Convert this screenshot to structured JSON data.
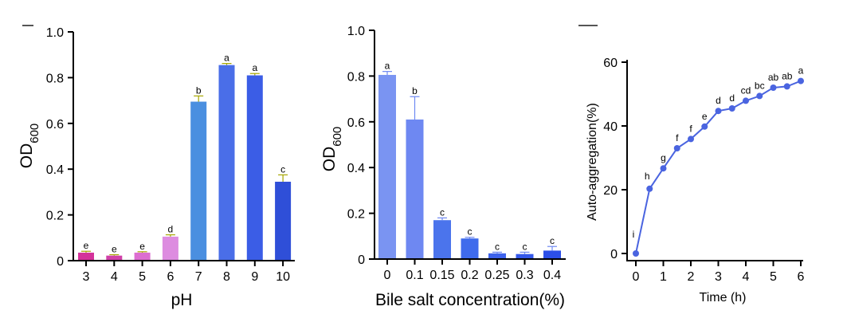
{
  "chart_data": [
    {
      "type": "bar",
      "ylabel_main": "OD",
      "ylabel_sub": "600",
      "xlabel": "pH",
      "ylim": [
        0,
        1.0
      ],
      "yticks": [
        "0",
        "0.2",
        "0.4",
        "0.6",
        "0.8",
        "1.0"
      ],
      "categories": [
        "3",
        "4",
        "5",
        "6",
        "7",
        "8",
        "9",
        "10"
      ],
      "values": [
        0.035,
        0.022,
        0.035,
        0.105,
        0.695,
        0.855,
        0.81,
        0.345
      ],
      "errors": [
        0.006,
        0.004,
        0.004,
        0.008,
        0.025,
        0.007,
        0.008,
        0.03
      ],
      "letters": [
        "e",
        "e",
        "e",
        "d",
        "b",
        "a",
        "a",
        "c"
      ],
      "colors": [
        "#d4329a",
        "#d040a8",
        "#dc6ed0",
        "#dd8ce0",
        "#4a8fe0",
        "#4a6ee8",
        "#3b5de6",
        "#2f4fd8"
      ],
      "error_color": "#a6a600"
    },
    {
      "type": "bar",
      "ylabel_main": "OD",
      "ylabel_sub": "600",
      "xlabel": "Bile salt concentration(%)",
      "ylim": [
        0,
        1.0
      ],
      "yticks": [
        "0",
        "0.2",
        "0.4",
        "0.6",
        "0.8",
        "1.0"
      ],
      "categories": [
        "0",
        "0.1",
        "0.15",
        "0.2",
        "0.25",
        "0.3",
        "0.4"
      ],
      "values": [
        0.805,
        0.61,
        0.17,
        0.09,
        0.025,
        0.022,
        0.037
      ],
      "errors": [
        0.015,
        0.1,
        0.01,
        0.005,
        0.005,
        0.008,
        0.018
      ],
      "letters": [
        "a",
        "b",
        "c",
        "c",
        "c",
        "c",
        "c"
      ],
      "colors": [
        "#7a94f2",
        "#6e88f2",
        "#4b74ec",
        "#3f6bec",
        "#3d62ec",
        "#3458ea",
        "#2c4fe8"
      ],
      "error_color": "#6e88f2"
    },
    {
      "type": "line",
      "ylabel": "Auto-aggregation(%)",
      "xlabel": "Time (h)",
      "xlim": [
        0,
        6
      ],
      "ylim": [
        0,
        60
      ],
      "xticks": [
        "0",
        "1",
        "2",
        "3",
        "4",
        "5",
        "6"
      ],
      "yticks": [
        "0",
        "20",
        "40",
        "60"
      ],
      "x": [
        0,
        0.5,
        1,
        1.5,
        2,
        2.5,
        3,
        3.5,
        4,
        4.5,
        5,
        5.5,
        6
      ],
      "y": [
        0,
        20.3,
        26.7,
        33.0,
        35.9,
        39.8,
        44.7,
        45.5,
        47.9,
        49.4,
        52.0,
        52.4,
        54.1
      ],
      "letters": [
        "i",
        "h",
        "g",
        "f",
        "f",
        "e",
        "d",
        "d",
        "cd",
        "bc",
        "ab",
        "ab",
        "a"
      ],
      "color": "#4a64e0"
    }
  ]
}
